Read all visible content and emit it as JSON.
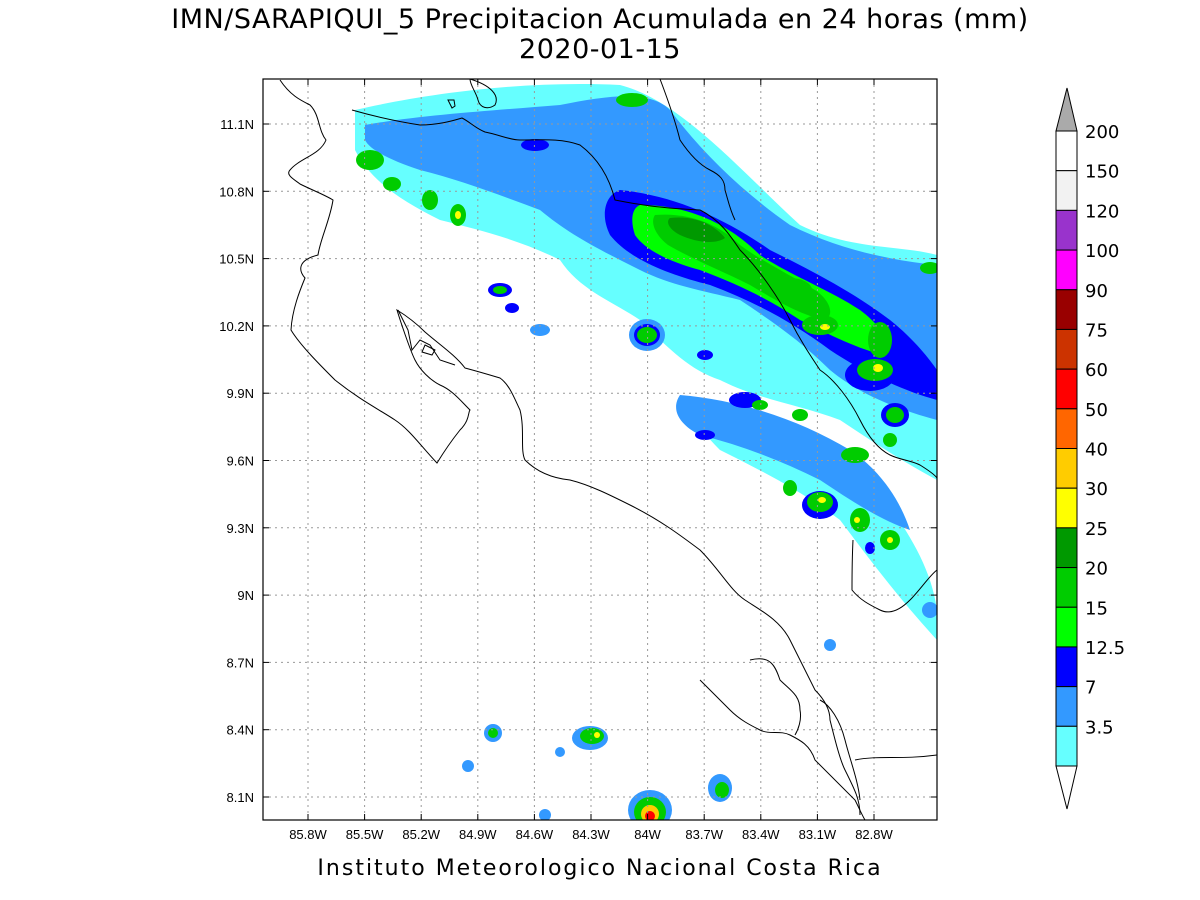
{
  "title": {
    "line1": "IMN/SARAPIQUI_5 Precipitacion Acumulada en 24 horas (mm)",
    "line2": "2020-01-15"
  },
  "footer": "Instituto Meteorologico Nacional Costa Rica",
  "map": {
    "lon_labels": [
      "85.8W",
      "85.5W",
      "85.2W",
      "84.9W",
      "84.6W",
      "84.3W",
      "84W",
      "83.7W",
      "83.4W",
      "83.1W",
      "82.8W"
    ],
    "lat_labels": [
      "11.1N",
      "10.8N",
      "10.5N",
      "10.2N",
      "9.9N",
      "9.6N",
      "9.3N",
      "9N",
      "8.7N",
      "8.4N",
      "8.1N"
    ],
    "grid": true,
    "precip_colors": {
      "3.5": "#66ffff",
      "7": "#3399ff",
      "12.5": "#0000ff",
      "15": "#00ff00",
      "20": "#00cc00",
      "25": "#009900",
      "30": "#ffff00",
      "40": "#ffcc00",
      "60": "#ff0000"
    }
  },
  "colorbar": {
    "labels": [
      "200",
      "150",
      "120",
      "100",
      "90",
      "75",
      "60",
      "50",
      "40",
      "30",
      "25",
      "20",
      "15",
      "12.5",
      "7",
      "3.5"
    ],
    "colors": [
      "#ffffff",
      "#f2f2f2",
      "#9933cc",
      "#ff00ff",
      "#990000",
      "#cc3300",
      "#ff0000",
      "#ff6600",
      "#ffcc00",
      "#ffff00",
      "#009900",
      "#00cc00",
      "#00ff00",
      "#0000ff",
      "#3399ff",
      "#66ffff"
    ],
    "over_color": "#aaaaaa",
    "under_color": "#ffffff"
  }
}
